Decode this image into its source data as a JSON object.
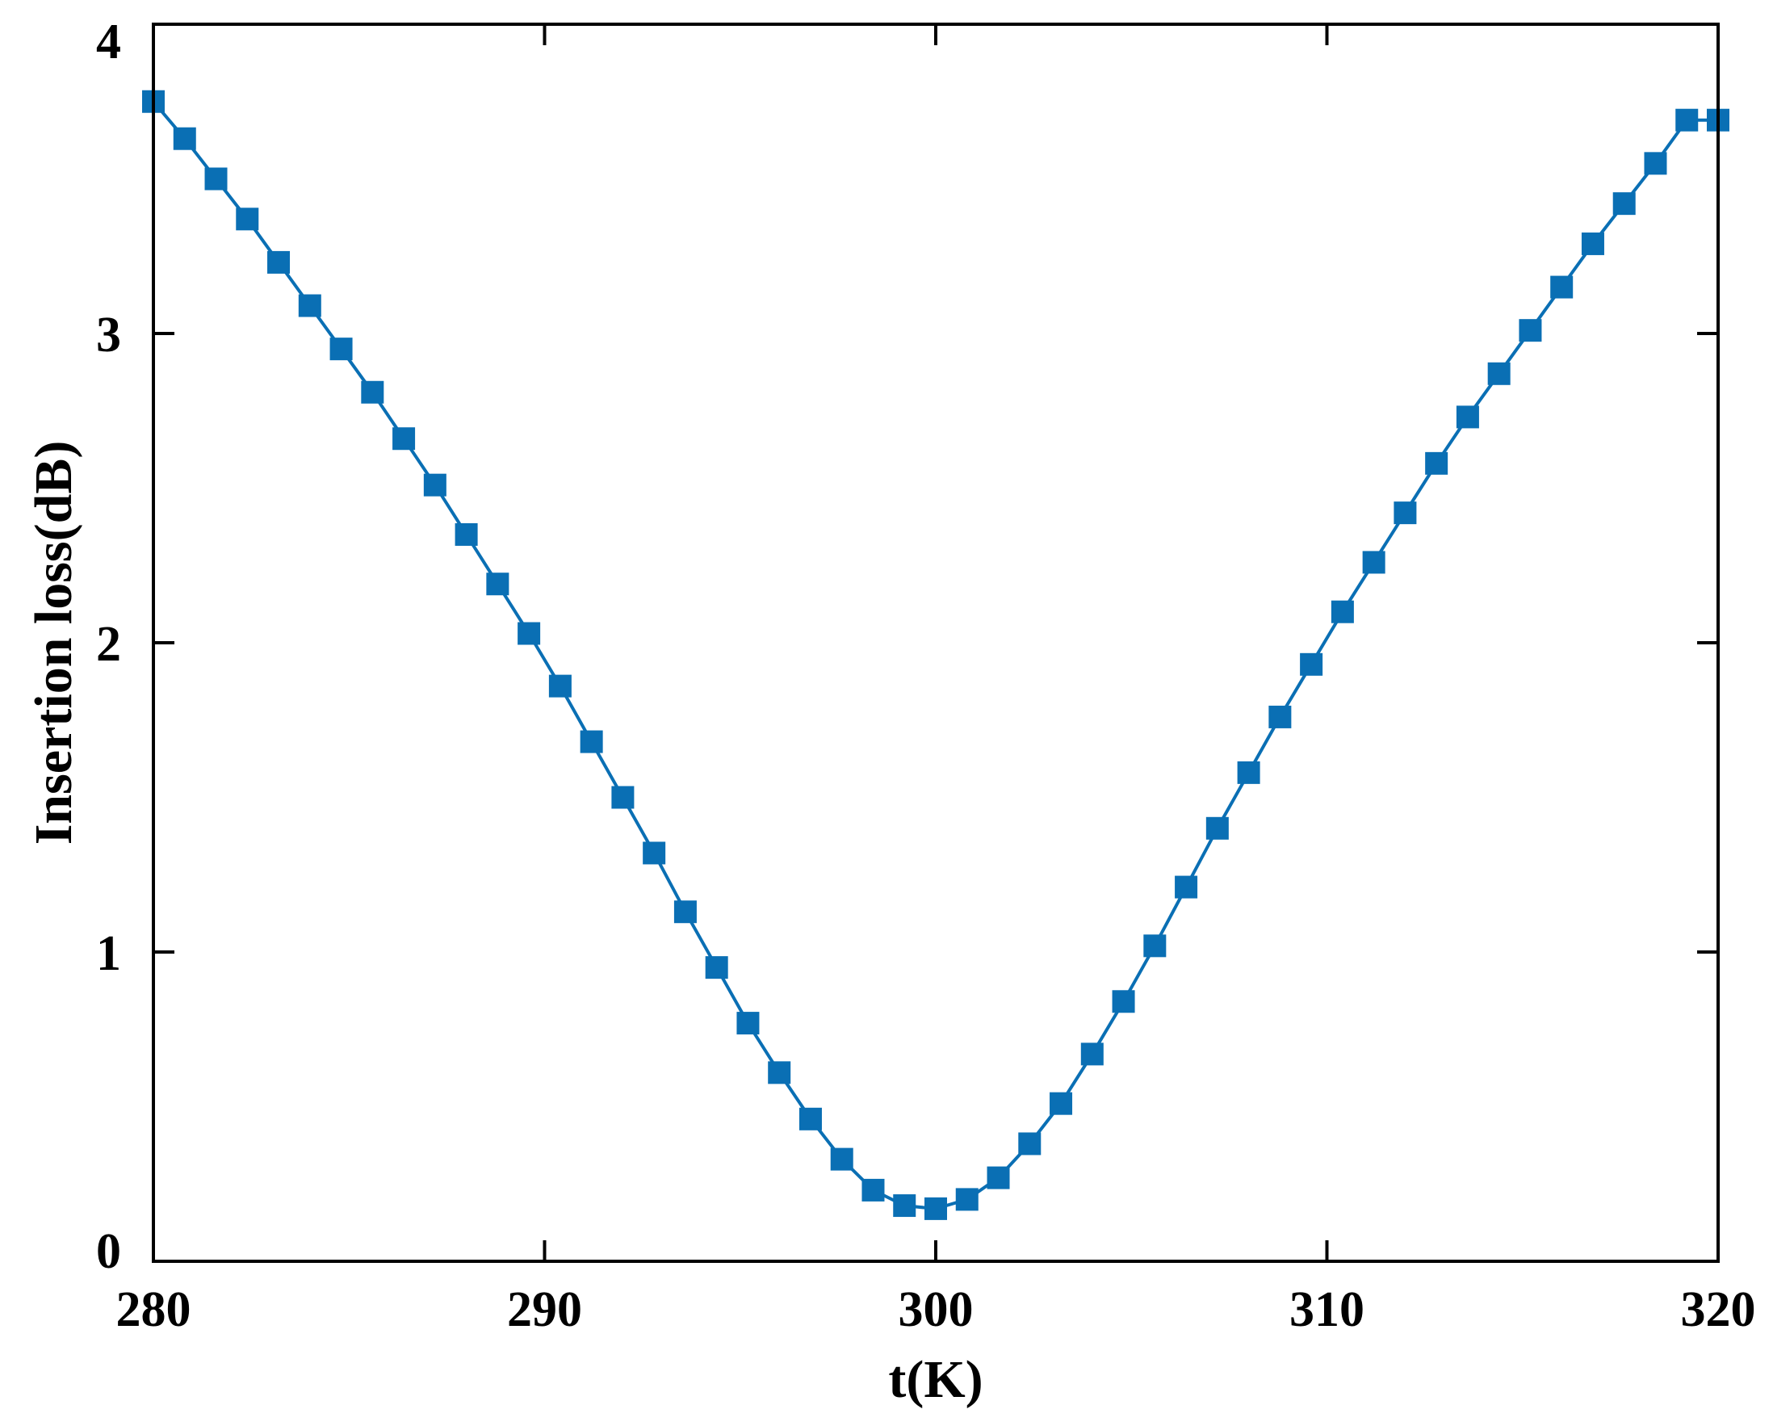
{
  "chart_data": {
    "type": "line",
    "title": "",
    "xlabel": "t(K)",
    "ylabel": "Insertion loss(dB)",
    "xlim": [
      280,
      320
    ],
    "ylim": [
      0,
      4
    ],
    "xticks": [
      280,
      290,
      300,
      310,
      320
    ],
    "yticks": [
      0,
      1,
      2,
      3,
      4
    ],
    "grid": false,
    "legend": "none",
    "series": [
      {
        "color": "#0a6fb4",
        "marker": "square",
        "x": [
          280.0,
          280.8,
          281.6,
          282.4,
          283.2,
          284.0,
          284.8,
          285.6,
          286.4,
          287.2,
          288.0,
          288.8,
          289.6,
          290.4,
          291.2,
          292.0,
          292.8,
          293.6,
          294.4,
          295.2,
          296.0,
          296.8,
          297.6,
          298.4,
          299.2,
          300.0,
          300.8,
          301.6,
          302.4,
          303.2,
          304.0,
          304.8,
          305.6,
          306.4,
          307.2,
          308.0,
          308.8,
          309.6,
          310.4,
          311.2,
          312.0,
          312.8,
          313.6,
          314.4,
          315.2,
          316.0,
          316.8,
          317.6,
          318.4,
          319.2,
          320.0
        ],
        "y": [
          3.75,
          3.63,
          3.5,
          3.37,
          3.23,
          3.09,
          2.95,
          2.81,
          2.66,
          2.51,
          2.35,
          2.19,
          2.03,
          1.86,
          1.68,
          1.5,
          1.32,
          1.13,
          0.95,
          0.77,
          0.61,
          0.46,
          0.33,
          0.23,
          0.18,
          0.17,
          0.2,
          0.27,
          0.38,
          0.51,
          0.67,
          0.84,
          1.02,
          1.21,
          1.4,
          1.58,
          1.76,
          1.93,
          2.1,
          2.26,
          2.42,
          2.58,
          2.73,
          2.87,
          3.01,
          3.15,
          3.29,
          3.42,
          3.55,
          3.69,
          3.69
        ]
      }
    ]
  }
}
